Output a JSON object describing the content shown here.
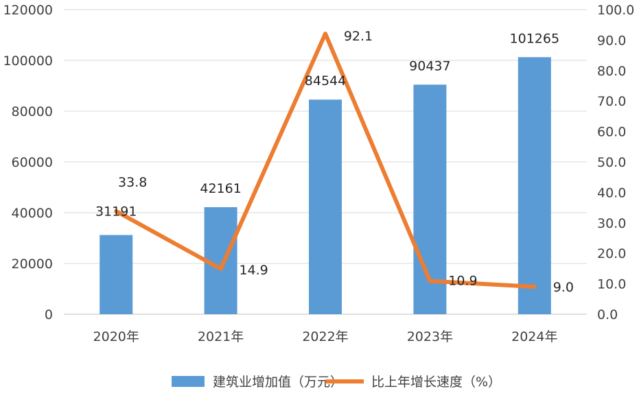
{
  "chart_data": {
    "type": "bar",
    "categories": [
      "2020年",
      "2021年",
      "2022年",
      "2023年",
      "2024年"
    ],
    "series": [
      {
        "name": "建筑业增加值（万元）",
        "type": "bar",
        "axis": "left",
        "values": [
          31191,
          42161,
          84544,
          90437,
          101265
        ],
        "labels": [
          "31191",
          "42161",
          "84544",
          "90437",
          "101265"
        ],
        "color": "#5B9BD5"
      },
      {
        "name": "比上年增长速度（%）",
        "type": "line",
        "axis": "right",
        "values": [
          33.8,
          14.9,
          92.1,
          10.9,
          9.0
        ],
        "labels": [
          "33.8",
          "14.9",
          "92.1",
          "10.9",
          "9.0"
        ],
        "color": "#ED7D31"
      }
    ],
    "y_left": {
      "ylim": [
        0,
        120000
      ],
      "ticks": [
        "0",
        "20000",
        "40000",
        "60000",
        "80000",
        "100000",
        "120000"
      ]
    },
    "y_right": {
      "ylim": [
        0,
        100
      ],
      "ticks": [
        "0.0",
        "10.0",
        "20.0",
        "30.0",
        "40.0",
        "50.0",
        "60.0",
        "70.0",
        "80.0",
        "90.0",
        "100.0"
      ]
    },
    "grid": true,
    "legend": "bottom"
  }
}
